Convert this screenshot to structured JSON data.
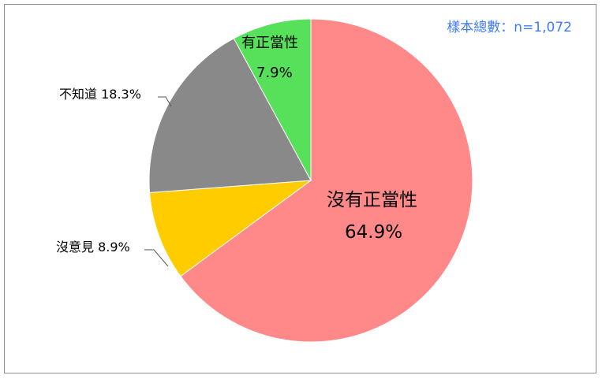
{
  "chart_data": {
    "type": "pie",
    "annotation": "樣本總數：n=1,072",
    "start": "top",
    "direction": "clockwise",
    "slices": [
      {
        "label": "沒有正當性",
        "value": 64.9,
        "display": "64.9%",
        "color": "#ff8888"
      },
      {
        "label": "沒意見",
        "value": 8.9,
        "display": "8.9%",
        "color": "#ffcc00"
      },
      {
        "label": "不知道",
        "value": 18.3,
        "display": "18.3%",
        "color": "#898989"
      },
      {
        "label": "有正當性",
        "value": 7.9,
        "display": "7.9%",
        "color": "#57e05a"
      }
    ]
  }
}
